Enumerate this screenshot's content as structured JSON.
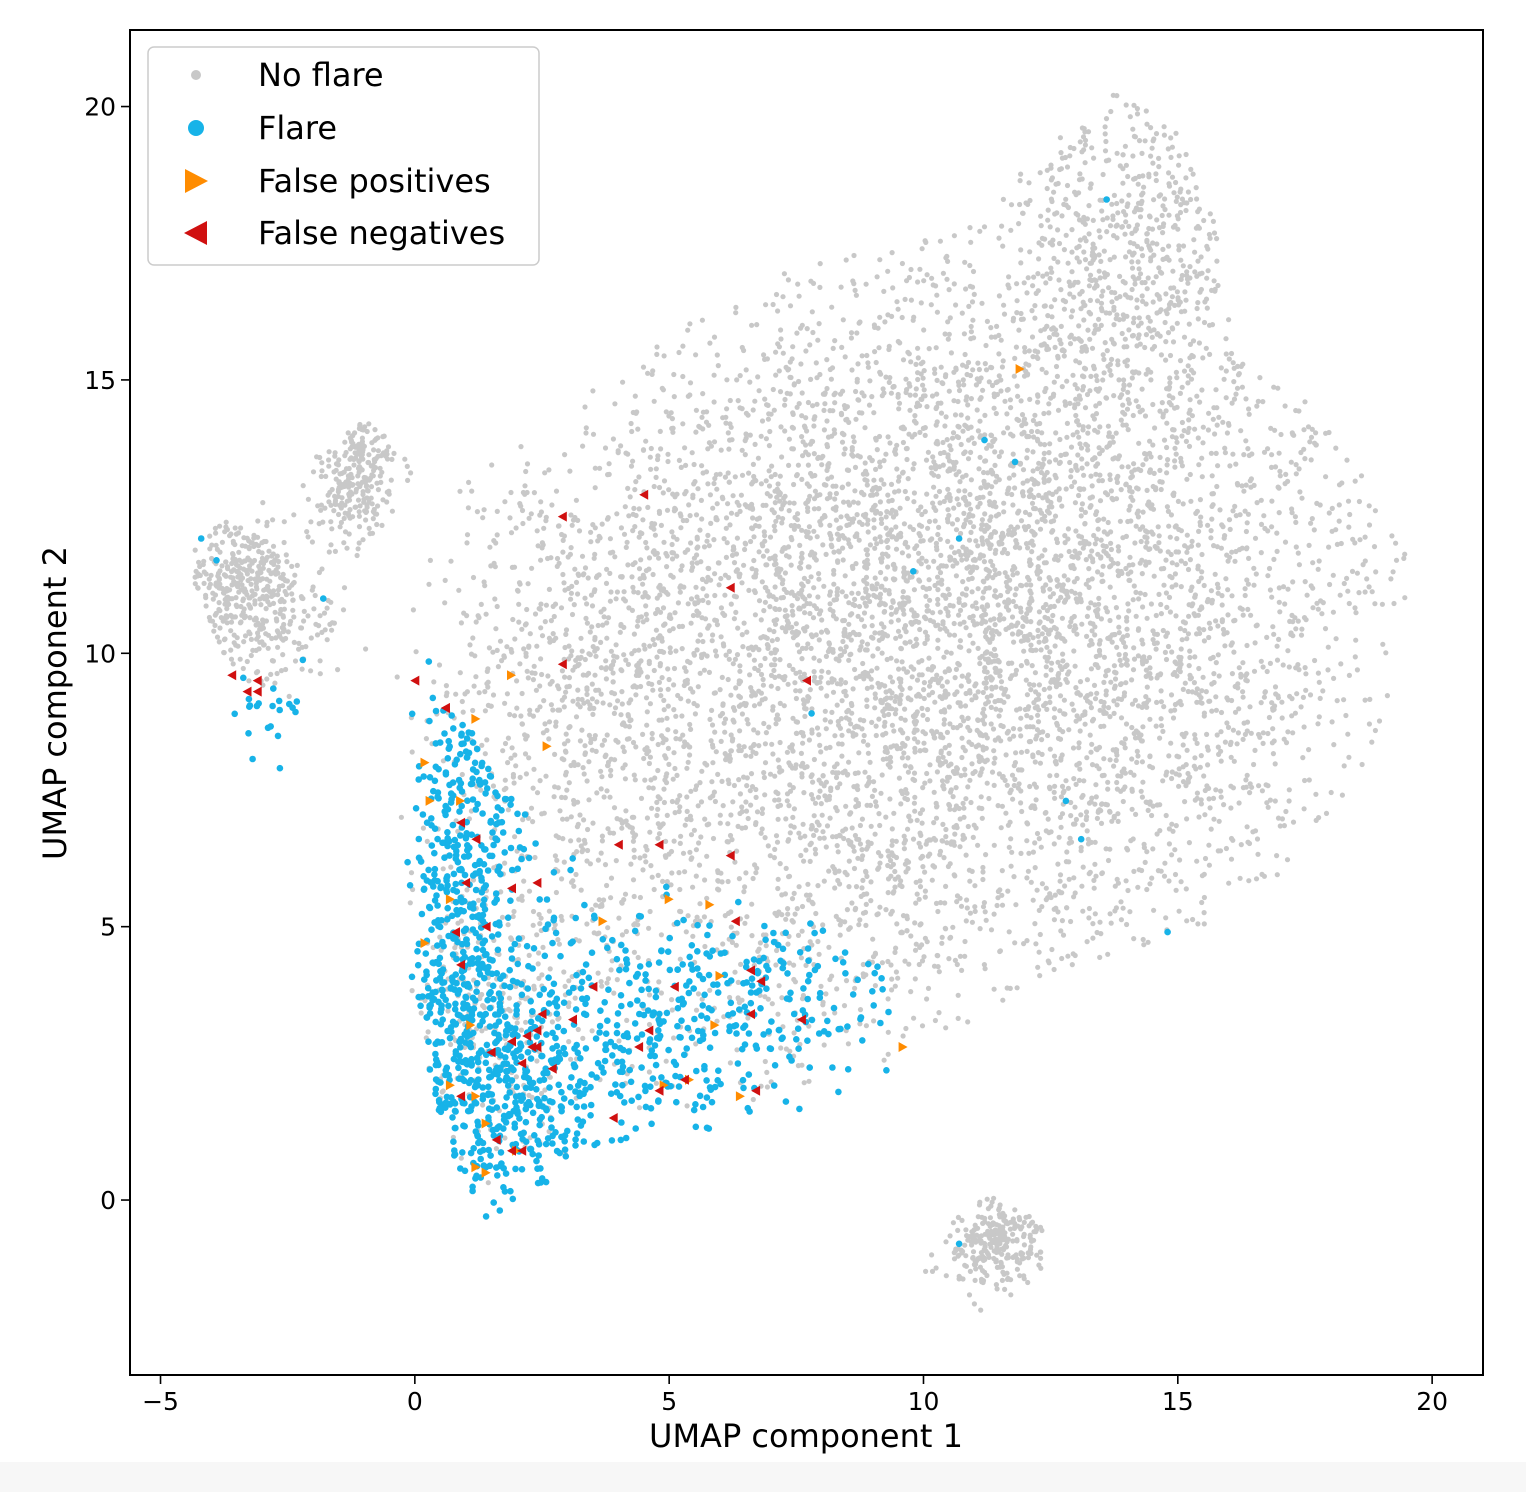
{
  "chart_data": {
    "type": "scatter",
    "xlabel": "UMAP component 1",
    "ylabel": "UMAP component 2",
    "xlim": [
      -5.6,
      21.0
    ],
    "ylim": [
      -3.2,
      21.4
    ],
    "xticks": [
      -5,
      0,
      5,
      10,
      15,
      20
    ],
    "yticks": [
      0,
      5,
      10,
      15,
      20
    ],
    "xtick_labels": [
      "−5",
      "0",
      "5",
      "10",
      "15",
      "20"
    ],
    "ytick_labels": [
      "0",
      "5",
      "10",
      "15",
      "20"
    ],
    "grid": false,
    "legend_position": "upper-left",
    "series": [
      {
        "name": "No flare",
        "marker": "circle",
        "color": "#c8c8c8",
        "note_regions": [
          {
            "cx": 12.5,
            "cy": 11.0,
            "sx": 3.6,
            "sy": 3.6,
            "n": 3800
          },
          {
            "cx": 7.5,
            "cy": 12.0,
            "sx": 3.0,
            "sy": 2.3,
            "n": 1300
          },
          {
            "cx": 14.0,
            "cy": 17.5,
            "sx": 1.4,
            "sy": 1.6,
            "n": 500
          },
          {
            "cx": 7.0,
            "cy": 7.0,
            "sx": 3.0,
            "sy": 2.5,
            "n": 1100
          },
          {
            "cx": 3.0,
            "cy": 9.0,
            "sx": 1.6,
            "sy": 2.0,
            "n": 450
          },
          {
            "cx": -3.5,
            "cy": 11.2,
            "sx": 0.5,
            "sy": 0.7,
            "n": 300
          },
          {
            "cx": -1.2,
            "cy": 13.3,
            "sx": 0.45,
            "sy": 0.6,
            "n": 250
          },
          {
            "cx": -2.6,
            "cy": 10.8,
            "sx": 0.6,
            "sy": 0.8,
            "n": 150
          },
          {
            "cx": 11.4,
            "cy": -0.8,
            "sx": 0.5,
            "sy": 0.45,
            "n": 260
          },
          {
            "cx": 1.5,
            "cy": 3.5,
            "sx": 1.0,
            "sy": 1.5,
            "n": 250
          }
        ],
        "sample_points": [
          [
            13.8,
            20.2
          ],
          [
            11.2,
            17.8
          ],
          [
            17.5,
            14.6
          ],
          [
            19.3,
            11.7
          ],
          [
            3.5,
            14.8
          ],
          [
            -1.0,
            14.1
          ],
          [
            -4.3,
            11.5
          ],
          [
            11.0,
            -1.9
          ],
          [
            12.3,
            -0.5
          ],
          [
            9.6,
            3.0
          ]
        ]
      },
      {
        "name": "Flare",
        "marker": "circle",
        "color": "#17b3e8",
        "note_regions": [
          {
            "cx": 0.8,
            "cy": 4.0,
            "sx": 0.55,
            "sy": 2.2,
            "n": 420
          },
          {
            "cx": 2.1,
            "cy": 2.0,
            "sx": 0.8,
            "sy": 1.1,
            "n": 330
          },
          {
            "cx": 4.8,
            "cy": 3.2,
            "sx": 1.4,
            "sy": 1.3,
            "n": 260
          },
          {
            "cx": 7.4,
            "cy": 3.5,
            "sx": 1.2,
            "sy": 1.1,
            "n": 130
          },
          {
            "cx": 1.2,
            "cy": 7.5,
            "sx": 0.6,
            "sy": 1.2,
            "n": 120
          },
          {
            "cx": -2.9,
            "cy": 9.0,
            "sx": 0.4,
            "sy": 0.35,
            "n": 22
          }
        ],
        "sample_points": [
          [
            13.6,
            18.3
          ],
          [
            11.2,
            13.9
          ],
          [
            11.8,
            13.5
          ],
          [
            10.7,
            12.1
          ],
          [
            9.8,
            11.5
          ],
          [
            -4.2,
            12.1
          ],
          [
            -3.9,
            11.7
          ],
          [
            1.4,
            0.6
          ],
          [
            1.4,
            -0.3
          ],
          [
            14.8,
            4.9
          ],
          [
            13.1,
            6.6
          ],
          [
            12.8,
            7.3
          ],
          [
            10.7,
            -0.8
          ],
          [
            7.8,
            8.9
          ],
          [
            -1.8,
            11.0
          ]
        ]
      },
      {
        "name": "False positives",
        "marker": "triangle-right",
        "color": "#ff8c00",
        "points": [
          [
            11.9,
            15.2
          ],
          [
            1.9,
            9.6
          ],
          [
            1.2,
            8.8
          ],
          [
            2.6,
            8.3
          ],
          [
            0.2,
            8.0
          ],
          [
            0.3,
            7.3
          ],
          [
            0.9,
            7.3
          ],
          [
            0.7,
            5.5
          ],
          [
            3.7,
            5.1
          ],
          [
            5.0,
            5.5
          ],
          [
            5.8,
            5.4
          ],
          [
            0.2,
            4.7
          ],
          [
            6.0,
            4.1
          ],
          [
            5.9,
            3.2
          ],
          [
            1.1,
            3.2
          ],
          [
            0.7,
            2.1
          ],
          [
            1.2,
            1.9
          ],
          [
            1.4,
            1.4
          ],
          [
            4.9,
            2.1
          ],
          [
            5.4,
            2.2
          ],
          [
            6.4,
            1.9
          ],
          [
            9.6,
            2.8
          ],
          [
            1.2,
            0.6
          ],
          [
            1.4,
            0.5
          ],
          [
            2.0,
            0.9
          ]
        ]
      },
      {
        "name": "False negatives",
        "marker": "triangle-left",
        "color": "#d01010",
        "points": [
          [
            -3.6,
            9.6
          ],
          [
            -3.1,
            9.5
          ],
          [
            -3.3,
            9.3
          ],
          [
            -3.1,
            9.3
          ],
          [
            0.0,
            9.5
          ],
          [
            0.6,
            9.0
          ],
          [
            0.6,
            9.0
          ],
          [
            4.5,
            12.9
          ],
          [
            2.9,
            12.5
          ],
          [
            6.2,
            11.2
          ],
          [
            2.9,
            9.8
          ],
          [
            7.7,
            9.5
          ],
          [
            0.9,
            6.9
          ],
          [
            1.2,
            6.6
          ],
          [
            4.0,
            6.5
          ],
          [
            4.8,
            6.5
          ],
          [
            6.2,
            6.3
          ],
          [
            1.0,
            5.8
          ],
          [
            1.9,
            5.7
          ],
          [
            2.4,
            5.8
          ],
          [
            1.4,
            5.0
          ],
          [
            0.8,
            4.9
          ],
          [
            0.9,
            4.3
          ],
          [
            6.3,
            5.1
          ],
          [
            6.6,
            4.2
          ],
          [
            6.8,
            4.0
          ],
          [
            3.5,
            3.9
          ],
          [
            5.1,
            3.9
          ],
          [
            2.5,
            3.4
          ],
          [
            3.1,
            3.3
          ],
          [
            2.4,
            3.1
          ],
          [
            2.2,
            3.0
          ],
          [
            4.6,
            3.1
          ],
          [
            6.6,
            3.4
          ],
          [
            7.6,
            3.3
          ],
          [
            2.4,
            2.8
          ],
          [
            2.3,
            2.8
          ],
          [
            1.5,
            2.7
          ],
          [
            1.9,
            2.9
          ],
          [
            4.4,
            2.8
          ],
          [
            2.1,
            2.5
          ],
          [
            2.7,
            2.4
          ],
          [
            0.9,
            1.9
          ],
          [
            4.8,
            2.0
          ],
          [
            5.3,
            2.2
          ],
          [
            6.7,
            2.0
          ],
          [
            3.9,
            1.5
          ],
          [
            1.6,
            1.1
          ],
          [
            1.9,
            0.9
          ],
          [
            2.1,
            0.9
          ]
        ]
      }
    ]
  }
}
